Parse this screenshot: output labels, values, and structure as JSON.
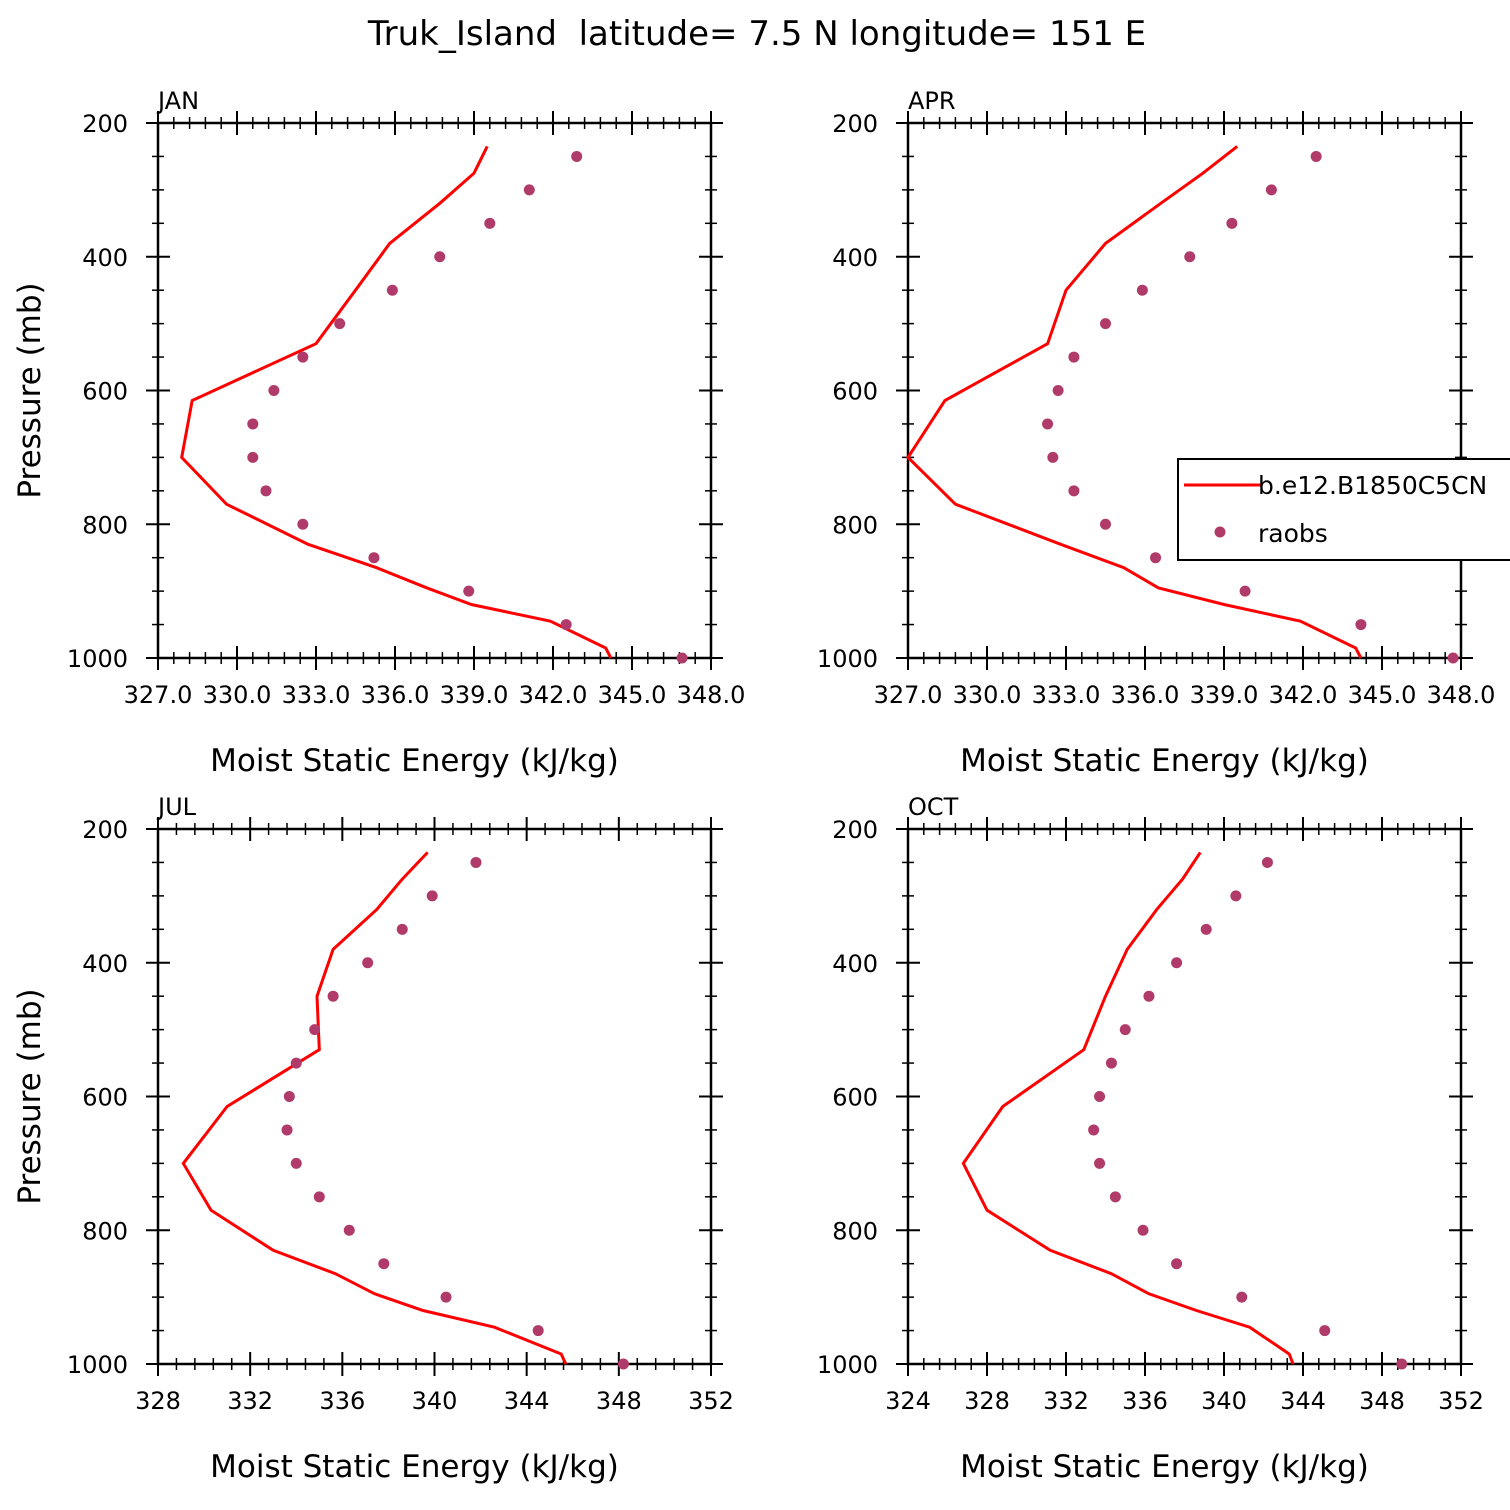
{
  "figure": {
    "title": "Truk_Island  latitude= 7.5 N longitude= 151 E"
  },
  "legend": {
    "entries": [
      "b.e12.B1850C5CN",
      "raobs"
    ]
  },
  "colors": {
    "model": "#ff0000",
    "raobs": "#b03a6a"
  },
  "chart_data": [
    {
      "type": "line",
      "title": "JAN",
      "xlabel": "Moist Static Energy (kJ/kg)",
      "ylabel": "Pressure (mb)",
      "xlim": [
        327.0,
        348.0
      ],
      "ylim": [
        1000,
        200
      ],
      "xticks": [
        "327.0",
        "330.0",
        "333.0",
        "336.0",
        "339.0",
        "342.0",
        "345.0",
        "348.0"
      ],
      "yticks": [
        "200",
        "400",
        "600",
        "800",
        "1000"
      ],
      "series": [
        {
          "name": "b.e12.B1850C5CN",
          "pressure": [
            1000,
            985,
            945,
            920,
            895,
            865,
            830,
            770,
            700,
            615,
            530,
            450,
            380,
            320,
            275,
            235
          ],
          "mse": [
            344.2,
            344.0,
            341.9,
            338.9,
            337.2,
            335.3,
            332.7,
            329.6,
            327.9,
            328.3,
            333.0,
            334.5,
            335.8,
            337.7,
            339.0,
            339.5
          ]
        },
        {
          "name": "raobs",
          "pressure": [
            1000,
            950,
            900,
            850,
            800,
            750,
            700,
            650,
            600,
            550,
            500,
            450,
            400,
            350,
            300,
            250
          ],
          "mse": [
            346.9,
            342.5,
            338.8,
            335.2,
            332.5,
            331.1,
            330.6,
            330.6,
            331.4,
            332.5,
            333.9,
            335.9,
            337.7,
            339.6,
            341.1,
            342.9
          ]
        }
      ]
    },
    {
      "type": "line",
      "title": "APR",
      "xlabel": "Moist Static Energy (kJ/kg)",
      "ylabel": "",
      "xlim": [
        327.0,
        348.0
      ],
      "ylim": [
        1000,
        200
      ],
      "xticks": [
        "327.0",
        "330.0",
        "333.0",
        "336.0",
        "339.0",
        "342.0",
        "345.0",
        "348.0"
      ],
      "yticks": [
        "200",
        "400",
        "600",
        "800",
        "1000"
      ],
      "series": [
        {
          "name": "b.e12.B1850C5CN",
          "pressure": [
            1000,
            985,
            945,
            920,
            895,
            865,
            830,
            770,
            700,
            615,
            530,
            450,
            380,
            320,
            275,
            235
          ],
          "mse": [
            344.2,
            344.0,
            341.9,
            339.0,
            336.5,
            335.2,
            332.8,
            328.8,
            327.0,
            328.4,
            332.3,
            333.0,
            334.5,
            336.6,
            338.2,
            339.5
          ]
        },
        {
          "name": "raobs",
          "pressure": [
            1000,
            950,
            900,
            850,
            800,
            750,
            700,
            650,
            600,
            550,
            500,
            450,
            400,
            350,
            300,
            250
          ],
          "mse": [
            347.7,
            344.2,
            339.8,
            336.4,
            334.5,
            333.3,
            332.5,
            332.3,
            332.7,
            333.3,
            334.5,
            335.9,
            337.7,
            339.3,
            340.8,
            342.5
          ]
        }
      ]
    },
    {
      "type": "line",
      "title": "JUL",
      "xlabel": "Moist Static Energy (kJ/kg)",
      "ylabel": "Pressure (mb)",
      "xlim": [
        328,
        352
      ],
      "ylim": [
        1000,
        200
      ],
      "xticks": [
        "328",
        "332",
        "336",
        "340",
        "344",
        "348",
        "352"
      ],
      "yticks": [
        "200",
        "400",
        "600",
        "800",
        "1000"
      ],
      "series": [
        {
          "name": "b.e12.B1850C5CN",
          "pressure": [
            1000,
            985,
            945,
            920,
            895,
            865,
            830,
            770,
            700,
            615,
            530,
            450,
            380,
            320,
            275,
            235
          ],
          "mse": [
            345.7,
            345.5,
            342.6,
            339.5,
            337.4,
            335.7,
            333.0,
            330.3,
            329.1,
            331.0,
            335.0,
            334.9,
            335.6,
            337.5,
            338.6,
            339.7
          ]
        },
        {
          "name": "raobs",
          "pressure": [
            1000,
            950,
            900,
            850,
            800,
            750,
            700,
            650,
            600,
            550,
            500,
            450,
            400,
            350,
            300,
            250
          ],
          "mse": [
            348.2,
            344.5,
            340.5,
            337.8,
            336.3,
            335.0,
            334.0,
            333.6,
            333.7,
            334.0,
            334.8,
            335.6,
            337.1,
            338.6,
            339.9,
            341.8
          ]
        }
      ]
    },
    {
      "type": "line",
      "title": "OCT",
      "xlabel": "Moist Static Energy (kJ/kg)",
      "ylabel": "",
      "xlim": [
        324,
        352
      ],
      "ylim": [
        1000,
        200
      ],
      "xticks": [
        "324",
        "328",
        "332",
        "336",
        "340",
        "344",
        "348",
        "352"
      ],
      "yticks": [
        "200",
        "400",
        "600",
        "800",
        "1000"
      ],
      "series": [
        {
          "name": "b.e12.B1850C5CN",
          "pressure": [
            1000,
            985,
            945,
            920,
            895,
            865,
            830,
            770,
            700,
            615,
            530,
            450,
            380,
            320,
            275,
            235
          ],
          "mse": [
            343.5,
            343.3,
            341.3,
            338.6,
            336.2,
            334.3,
            331.2,
            328.0,
            326.8,
            328.8,
            332.9,
            334.0,
            335.1,
            336.6,
            337.9,
            338.8
          ]
        },
        {
          "name": "raobs",
          "pressure": [
            1000,
            950,
            900,
            850,
            800,
            750,
            700,
            650,
            600,
            550,
            500,
            450,
            400,
            350,
            300,
            250
          ],
          "mse": [
            349.0,
            345.1,
            340.9,
            337.6,
            335.9,
            334.5,
            333.7,
            333.4,
            333.7,
            334.3,
            335.0,
            336.2,
            337.6,
            339.1,
            340.6,
            342.2
          ]
        }
      ]
    }
  ]
}
